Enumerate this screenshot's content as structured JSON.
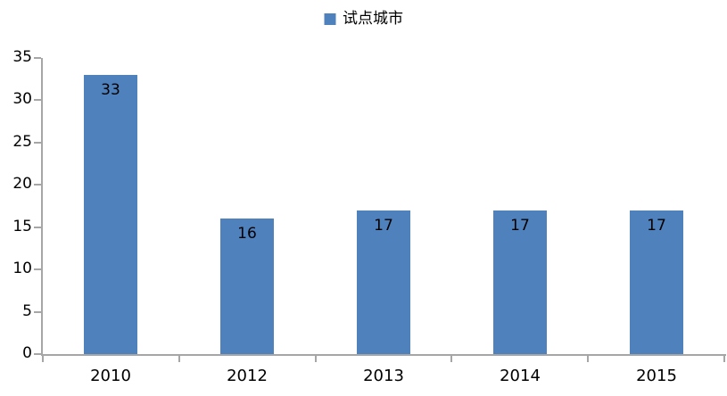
{
  "legend": {
    "label": "试点城市",
    "marker_color": "#4F81BD"
  },
  "chart_data": {
    "type": "bar",
    "title": "",
    "xlabel": "",
    "ylabel": "",
    "series_name": "试点城市",
    "categories": [
      "2010",
      "2012",
      "2013",
      "2014",
      "2015"
    ],
    "values": [
      33,
      16,
      17,
      17,
      17
    ],
    "ylim": [
      0,
      35
    ],
    "yticks": [
      0,
      5,
      10,
      15,
      20,
      25,
      30,
      35
    ],
    "grid": false,
    "legend_position": "top-center",
    "data_labels": "inside-top",
    "bar_color": "#4F81BD",
    "axis_color": "#A6A6A6",
    "text_color": "#000000"
  }
}
